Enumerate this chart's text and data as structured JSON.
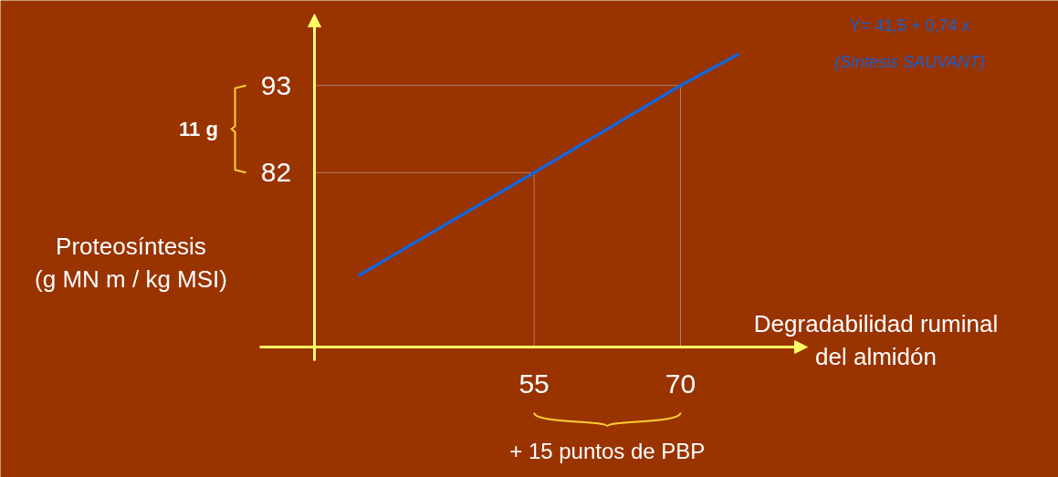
{
  "chart_data": {
    "type": "line",
    "xlabel": "Degradabilidad ruminal\ndel almidón",
    "ylabel": "Proteosíntesis\n(g MN m / kg MSI)",
    "x": [
      37,
      55,
      70,
      76
    ],
    "series": [
      {
        "color": "#1565d8",
        "values": [
          69,
          82,
          93,
          97
        ]
      }
    ],
    "xlim": [
      32.5,
      83
    ],
    "ylim": [
      60,
      102
    ],
    "xticks": [
      55,
      70
    ],
    "yticks": [
      82,
      93
    ],
    "ref_lines": [
      {
        "axis": "x",
        "value": 55,
        "color": "#b08070"
      },
      {
        "axis": "x",
        "value": 70,
        "color": "#b08070"
      },
      {
        "axis": "y",
        "value": 82,
        "color": "#b08070"
      },
      {
        "axis": "y",
        "value": 93,
        "color": "#b08070"
      }
    ],
    "annotations": [
      "11 g",
      "+ 15 puntos de PBP",
      "Y= 41,5 + 0,74 x",
      "(Síntesis SAUVANT)"
    ],
    "grid": false,
    "marker": "none",
    "line_style": "solid"
  }
}
